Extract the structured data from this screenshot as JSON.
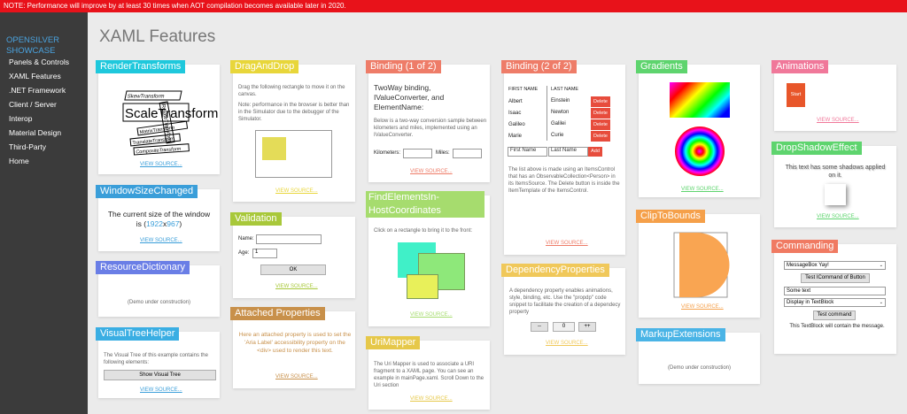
{
  "notice": "NOTE: Performance will improve by at least 30 times when AOT compilation becomes available later in 2020.",
  "brand": "OPENSILVER SHOWCASE",
  "nav": [
    "Panels & Controls",
    "XAML Features",
    ".NET Framework",
    "Client / Server",
    "Interop",
    "Material Design",
    "Third-Party",
    "Home"
  ],
  "title": "XAML Features",
  "view_source": "VIEW SOURCE...",
  "render": {
    "tag": "RenderTransforms",
    "color": "#1fc8dc",
    "words": [
      "SkewTransform",
      "ScaleTransform",
      "RotateTransform",
      "MatrixTransform",
      "TranslateTransform",
      "CompositeTransform"
    ]
  },
  "window_size": {
    "tag": "WindowSizeChanged",
    "color": "#3a9ed9",
    "line1": "The current size of the window",
    "prefix": "is (",
    "width": "1922",
    "x": "x",
    "height": "967",
    "suffix": ")"
  },
  "resource_dict": {
    "tag": "ResourceDictionary",
    "color": "#6a7ee6",
    "text": "(Demo under construction)"
  },
  "visual_tree": {
    "tag": "VisualTreeHelper",
    "color": "#3aaee3",
    "text": "The Visual Tree of this example contains the following elements:",
    "button": "Show Visual Tree"
  },
  "drag_drop": {
    "tag": "DragAndDrop",
    "color": "#e8d63a",
    "text1": "Drag the following rectangle to move it on the canvas.",
    "text2": "Note: performance in the browser is better than in the Simulator due to the debugger of the Simulator."
  },
  "validation": {
    "tag": "Validation",
    "color": "#a8c83a",
    "name_label": "Name:",
    "age_label": "Age:",
    "age_value": "1",
    "ok": "OK"
  },
  "attached": {
    "tag": "Attached Properties",
    "color": "#c8904a",
    "text": "Here an attached property is used to set the 'Aria Label' accessibility property on the <div> used to render this text."
  },
  "binding1": {
    "tag": "Binding (1 of 2)",
    "color": "#ee7c68",
    "heading": "TwoWay binding, IValueConverter, and ElementName:",
    "text": "Below is a two-way conversion sample between kilometers and miles, implemented using an IValueConverter.",
    "km": "Kilometers:",
    "miles": "Miles:"
  },
  "find_elements": {
    "tag": "FindElementsIn-HostCoordinates",
    "color": "#a6dc6e",
    "text": "Click on a rectangle to bring it to the front:"
  },
  "uri_mapper": {
    "tag": "UriMapper",
    "color": "#e6c84a",
    "text": "The Uri Mapper is used to associate a URI fragment to a XAML page. You can see an example in mainPage.xaml. Scroll Down to the Uri section"
  },
  "binding2": {
    "tag": "Binding (2 of 2)",
    "color": "#ee7c68",
    "col1": "FIRST NAME",
    "col2": "LAST NAME",
    "rows": [
      {
        "first": "Albert",
        "last": "Einstein"
      },
      {
        "first": "Isaac",
        "last": "Newton"
      },
      {
        "first": "Galileo",
        "last": "Galilei"
      },
      {
        "first": "Marie",
        "last": "Curie"
      }
    ],
    "delete": "Delete",
    "first_ph": "First Name",
    "last_ph": "Last Name",
    "add": "Add",
    "text": "The list above is made using an ItemsControl that has an ObservableCollection<Person> in its ItemsSource. The Delete button is inside the ItemTemplate of the ItemsControl."
  },
  "dependency": {
    "tag": "DependencyProperties",
    "color": "#f0c85a",
    "text": "A dependency property enables animations, style, binding, etc. Use the \"propdp\" code snippet to facilitate the creation of a dependecy property",
    "minus": "--",
    "value": "0",
    "plus": "++"
  },
  "gradients": {
    "tag": "Gradients",
    "color": "#5ed46e"
  },
  "clip": {
    "tag": "ClipToBounds",
    "color": "#f5a04a"
  },
  "markup": {
    "tag": "MarkupExtensions",
    "color": "#4ab4e6",
    "text": "(Demo under construction)"
  },
  "animations": {
    "tag": "Animations",
    "color": "#f0789a",
    "button": "Start"
  },
  "dropshadow": {
    "tag": "DropShadowEffect",
    "color": "#5ed46e",
    "text": "This text has some shadows applied on it."
  },
  "commanding": {
    "tag": "Commanding",
    "color": "#f07a62",
    "select1": "MessageBox Yay!",
    "btn1": "Test ICommand of Button",
    "input": "Some text",
    "select2": "Display in TextBlock",
    "btn2": "Test command",
    "result": "This TextBlock will contain the message."
  },
  "colors": {
    "link": "#3a9ed9",
    "notice": "#e8121a",
    "sidebar": "#3b3b3b"
  }
}
